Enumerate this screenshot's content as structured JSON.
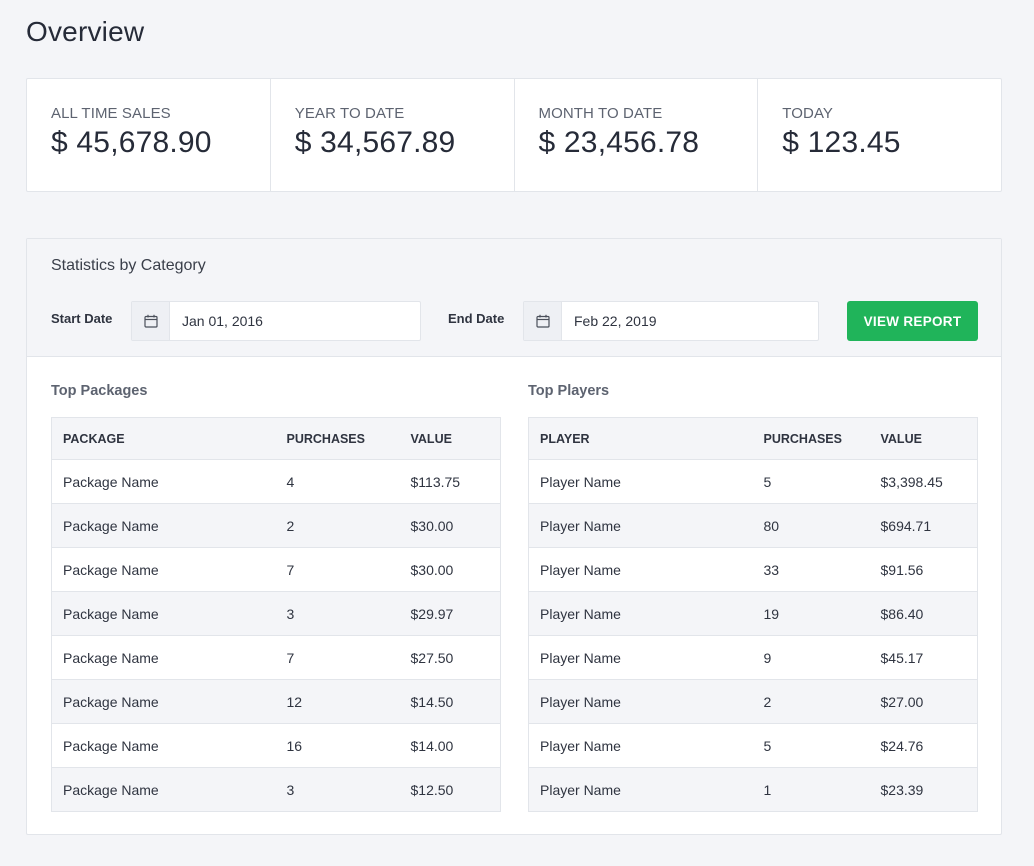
{
  "page": {
    "title": "Overview"
  },
  "stats": [
    {
      "label": "ALL TIME SALES",
      "value": "$ 45,678.90"
    },
    {
      "label": "YEAR TO DATE",
      "value": "$ 34,567.89"
    },
    {
      "label": "MONTH TO DATE",
      "value": "$ 23,456.78"
    },
    {
      "label": "TODAY",
      "value": "$ 123.45"
    }
  ],
  "panel": {
    "title": "Statistics by Category",
    "start_label": "Start Date",
    "start_value": "Jan 01, 2016",
    "end_label": "End Date",
    "end_value": "Feb 22, 2019",
    "button_label": "VIEW REPORT",
    "icon": "calendar-icon",
    "accent_color": "#20b45a"
  },
  "packages": {
    "title": "Top Packages",
    "columns": [
      "PACKAGE",
      "PURCHASES",
      "VALUE"
    ],
    "rows": [
      [
        "Package Name",
        "4",
        "$113.75"
      ],
      [
        "Package Name",
        "2",
        "$30.00"
      ],
      [
        "Package Name",
        "7",
        "$30.00"
      ],
      [
        "Package Name",
        "3",
        "$29.97"
      ],
      [
        "Package Name",
        "7",
        "$27.50"
      ],
      [
        "Package Name",
        "12",
        "$14.50"
      ],
      [
        "Package Name",
        "16",
        "$14.00"
      ],
      [
        "Package Name",
        "3",
        "$12.50"
      ]
    ]
  },
  "players": {
    "title": "Top Players",
    "columns": [
      "PLAYER",
      "PURCHASES",
      "VALUE"
    ],
    "rows": [
      [
        "Player Name",
        "5",
        "$3,398.45"
      ],
      [
        "Player Name",
        "80",
        "$694.71"
      ],
      [
        "Player Name",
        "33",
        "$91.56"
      ],
      [
        "Player Name",
        "19",
        "$86.40"
      ],
      [
        "Player Name",
        "9",
        "$45.17"
      ],
      [
        "Player Name",
        "2",
        "$27.00"
      ],
      [
        "Player Name",
        "5",
        "$24.76"
      ],
      [
        "Player Name",
        "1",
        "$23.39"
      ]
    ]
  }
}
